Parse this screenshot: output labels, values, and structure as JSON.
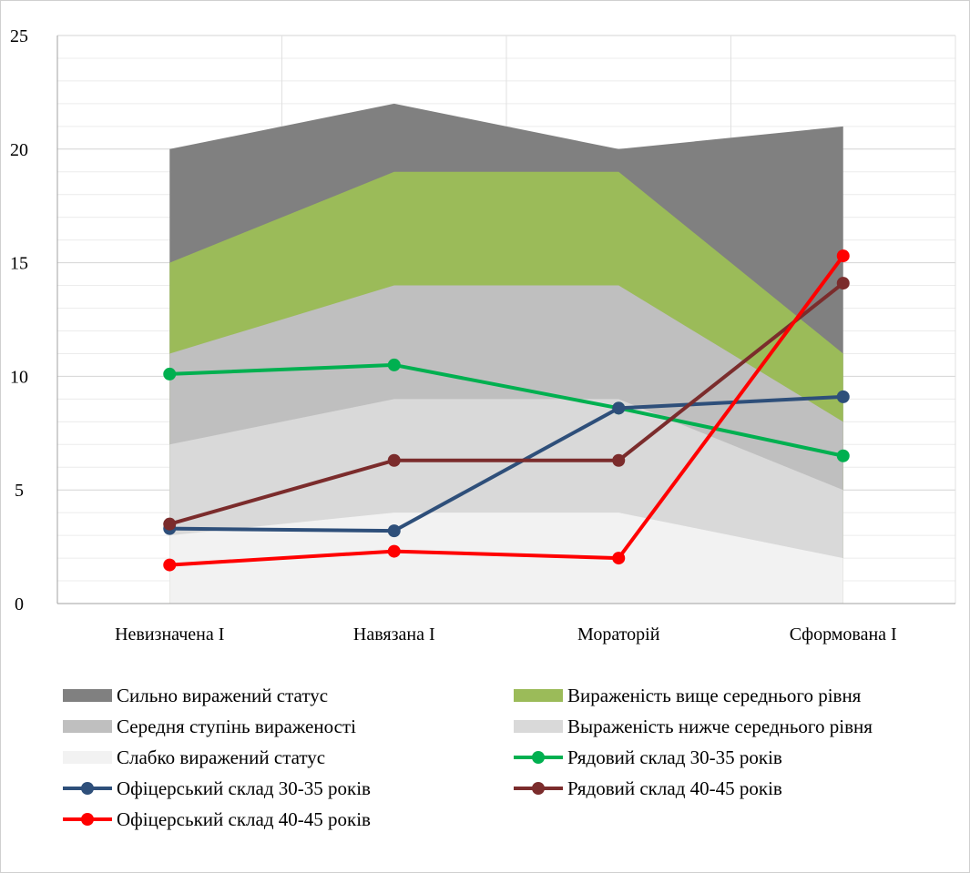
{
  "chart_data": {
    "type": "area",
    "categories": [
      "Невизначена І",
      "Навязана І",
      "Мораторій",
      "Сформована І"
    ],
    "ylim": [
      0,
      25
    ],
    "y_ticks": [
      0,
      5,
      10,
      15,
      20,
      25
    ],
    "grid": true,
    "legend_position": "bottom",
    "area_series": [
      {
        "name": "Сильно виражений статус",
        "color": "#808080",
        "values": [
          20,
          22,
          20,
          21
        ]
      },
      {
        "name": "Вираженість вище середнього рівня",
        "color": "#9bbb59",
        "values": [
          15,
          19,
          19,
          11
        ]
      },
      {
        "name": "Середня ступінь вираженості",
        "color": "#bfbfbf",
        "values": [
          11,
          14,
          14,
          8
        ]
      },
      {
        "name": "Выраженість нижче середнього рівня",
        "color": "#d9d9d9",
        "values": [
          7,
          9,
          9,
          5
        ]
      },
      {
        "name": "Слабко виражений статус",
        "color": "#f2f2f2",
        "values": [
          3,
          4,
          4,
          2
        ]
      }
    ],
    "line_series": [
      {
        "name": "Рядовий склад 30-35 років",
        "color": "#00b050",
        "values": [
          10.1,
          10.5,
          8.6,
          6.5
        ]
      },
      {
        "name": "Офіцерський склад 30-35 років",
        "color": "#2e4f7a",
        "values": [
          3.3,
          3.2,
          8.6,
          9.1
        ]
      },
      {
        "name": "Рядовий склад 40-45 років",
        "color": "#7b2c2c",
        "values": [
          3.5,
          6.3,
          6.3,
          14.1
        ]
      },
      {
        "name": "Офіцерський склад 40-45 років",
        "color": "#ff0000",
        "values": [
          1.7,
          2.3,
          2.0,
          15.3
        ]
      }
    ],
    "legend_order": [
      {
        "kind": "area",
        "index": 0
      },
      {
        "kind": "area",
        "index": 1
      },
      {
        "kind": "area",
        "index": 2
      },
      {
        "kind": "area",
        "index": 3
      },
      {
        "kind": "area",
        "index": 4
      },
      {
        "kind": "line",
        "index": 0
      },
      {
        "kind": "line",
        "index": 1
      },
      {
        "kind": "line",
        "index": 2
      },
      {
        "kind": "line",
        "index": 3
      }
    ]
  }
}
